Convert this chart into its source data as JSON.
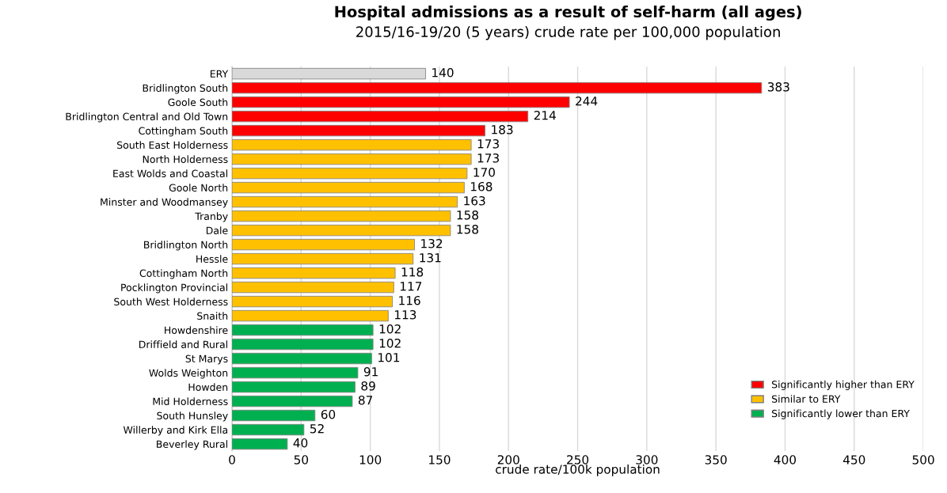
{
  "chart_data": {
    "type": "bar",
    "orientation": "horizontal",
    "title": "Hospital admissions as a result of self-harm (all ages)",
    "subtitle": "2015/16-19/20 (5 years) crude rate per 100,000 population",
    "xlabel": "crude rate/100k population",
    "categories": [
      "ERY",
      "Bridlington South",
      "Goole South",
      "Bridlington Central and Old Town",
      "Cottingham South",
      "South East Holderness",
      "North Holderness",
      "East Wolds and Coastal",
      "Goole North",
      "Minster and Woodmansey",
      "Tranby",
      "Dale",
      "Bridlington North",
      "Hessle",
      "Cottingham North",
      "Pocklington Provincial",
      "South West Holderness",
      "Snaith",
      "Howdenshire",
      "Driffield and Rural",
      "St Marys",
      "Wolds Weighton",
      "Howden",
      "Mid Holderness",
      "South Hunsley",
      "Willerby and Kirk Ella",
      "Beverley Rural"
    ],
    "series": [
      {
        "color": "#d9d9d9",
        "values": [
          140,
          null,
          null,
          null,
          null,
          null,
          null,
          null,
          null,
          null,
          null,
          null,
          null,
          null,
          null,
          null,
          null,
          null,
          null,
          null,
          null,
          null,
          null,
          null,
          null,
          null,
          null
        ]
      },
      {
        "name": "Significantly higher than ERY",
        "color": "#ff0000",
        "values": [
          null,
          383,
          244,
          214,
          183,
          null,
          null,
          null,
          null,
          null,
          null,
          null,
          null,
          null,
          null,
          null,
          null,
          null,
          null,
          null,
          null,
          null,
          null,
          null,
          null,
          null,
          null
        ]
      },
      {
        "name": "Similar to ERY",
        "color": "#ffc000",
        "values": [
          null,
          null,
          null,
          null,
          null,
          173,
          173,
          170,
          168,
          163,
          158,
          158,
          132,
          131,
          118,
          117,
          116,
          113,
          null,
          null,
          null,
          null,
          null,
          null,
          null,
          null,
          null
        ]
      },
      {
        "name": "Significantly lower than ERY",
        "color": "#00b050",
        "values": [
          null,
          null,
          null,
          null,
          null,
          null,
          null,
          null,
          null,
          null,
          null,
          null,
          null,
          null,
          null,
          null,
          null,
          null,
          102,
          102,
          101,
          91,
          89,
          87,
          60,
          52,
          40
        ]
      }
    ],
    "xlim": [
      0,
      500
    ],
    "xticks": [
      0,
      50,
      100,
      150,
      200,
      250,
      300,
      350,
      400,
      450,
      500
    ],
    "grid": "x",
    "legend": "bottom right",
    "data_labels": true
  }
}
